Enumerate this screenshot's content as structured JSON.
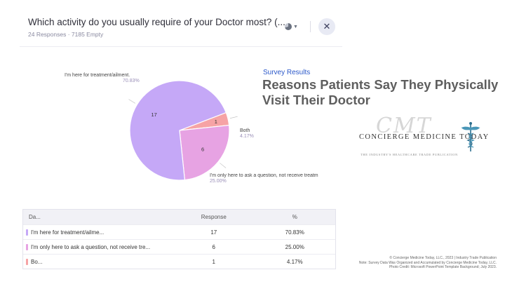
{
  "survey": {
    "question": "Which activity do you usually require of your Doctor most? (...",
    "responses_text": "24 Responses · 7185 Empty",
    "chart_type_icon": "pie-chart-icon",
    "close_icon": "close-icon"
  },
  "chart_data": {
    "type": "pie",
    "slices": [
      {
        "label": "I'm here for treatment/ailment.",
        "value": 17,
        "percent": "70.83%",
        "color": "#c5a8f7"
      },
      {
        "label": "I'm only here to ask a question, not receive treatm",
        "value": 6,
        "percent": "25.00%",
        "color": "#e7a3e3"
      },
      {
        "label": "Both",
        "value": 1,
        "percent": "4.17%",
        "color": "#f6a3a5"
      }
    ]
  },
  "slide": {
    "kicker": "Survey Results",
    "title": "Reasons Patients Say They Physically Visit Their Doctor"
  },
  "logo": {
    "script": "CMT",
    "name": "CONCIERGE MEDICINE TODAY",
    "tagline": "THE INDUSTRY'S HEALTHCARE TRADE PUBLICATION"
  },
  "table": {
    "headers": [
      "Da...",
      "Response",
      "%"
    ],
    "rows": [
      {
        "label": "I'm here for treatment/ailme...",
        "response": "17",
        "percent": "70.83%",
        "color": "#c5a8f7"
      },
      {
        "label": "I'm only here to ask a question, not receive tre...",
        "response": "6",
        "percent": "25.00%",
        "color": "#e7a3e3"
      },
      {
        "label": "Bo...",
        "response": "1",
        "percent": "4.17%",
        "color": "#f6a3a5"
      }
    ]
  },
  "footnote": [
    "© Concierge Medicine Today, LLC., 2023 | Industry Trade Publication",
    "Note: Survey Data Was Organized and Accumulated by Concierge Medicine Today, LLC.",
    "Photo Credit: Microsoft PowerPoint Template Background; July 2023."
  ]
}
